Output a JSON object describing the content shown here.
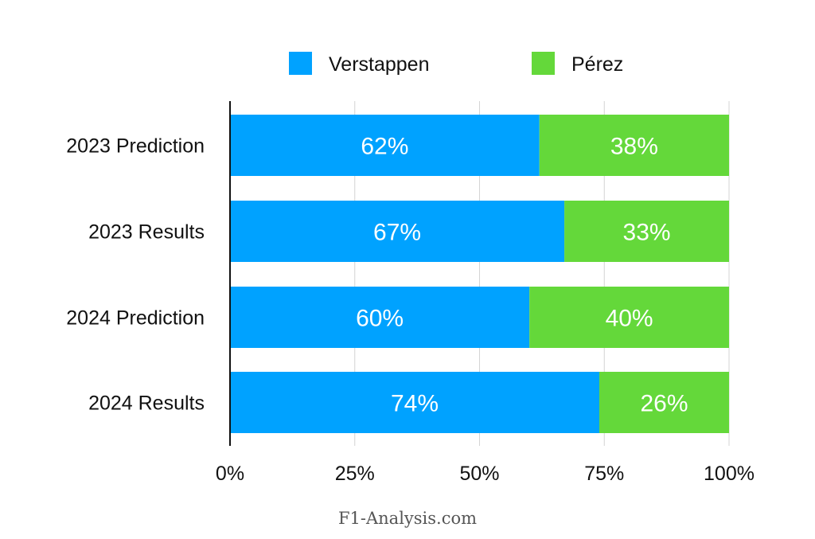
{
  "chart_data": {
    "type": "bar",
    "orientation": "horizontal",
    "stacked": true,
    "categories": [
      "2023 Prediction",
      "2023 Results",
      "2024 Prediction",
      "2024 Results"
    ],
    "series": [
      {
        "name": "Verstappen",
        "values": [
          62,
          67,
          60,
          74
        ],
        "color": "#00A2FF"
      },
      {
        "name": "Pérez",
        "values": [
          38,
          33,
          40,
          26
        ],
        "color": "#64D83A"
      }
    ],
    "xlim": [
      0,
      100
    ],
    "xticks": [
      "0%",
      "25%",
      "50%",
      "75%",
      "100%"
    ],
    "grid": true,
    "legend": "top",
    "data_label_suffix": "%"
  },
  "watermark": "F1-Analysis.com"
}
